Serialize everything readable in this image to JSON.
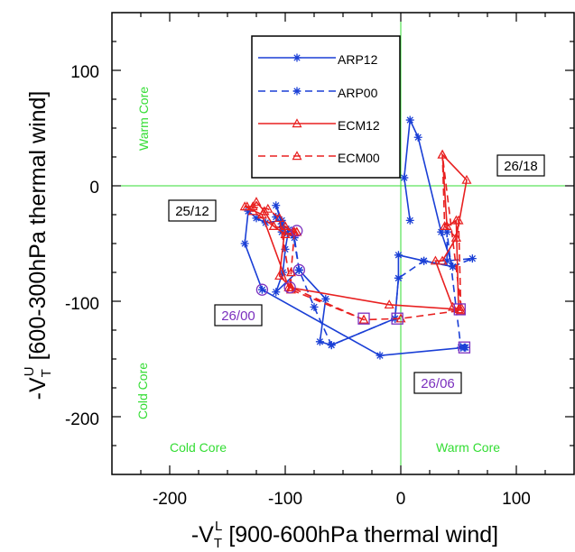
{
  "chart_data": {
    "type": "line",
    "xlabel": {
      "main": "-V",
      "sub": "T",
      "sup": "L",
      "rest": " [900-600hPa thermal wind]"
    },
    "ylabel": {
      "main": "-V",
      "sub": "T",
      "sup": "U",
      "rest": " [600-300hPa thermal wind]"
    },
    "xlim": [
      -250,
      150
    ],
    "ylim": [
      -250,
      150
    ],
    "xticks": [
      -200,
      -100,
      0,
      100
    ],
    "yticks": [
      -200,
      -100,
      0,
      100
    ],
    "xtick_labels": [
      "-200",
      "-100",
      "0",
      "100"
    ],
    "ytick_labels": [
      "-200",
      "-100",
      "0",
      "100"
    ],
    "quadrant_color": "#33dd33",
    "quadrant_labels": {
      "upper_left": "Warm Core",
      "lower_left_vertical": "Cold Core",
      "lower_left": "Cold Core",
      "lower_right": "Warm Core"
    },
    "legend_placement": "top-center",
    "series": [
      {
        "name": "ARP12",
        "color": "#1a3fd6",
        "style": "solid",
        "marker": "asterisk",
        "points": [
          [
            56,
            -140
          ],
          [
            -18,
            -147
          ],
          [
            -120,
            -90
          ],
          [
            -135,
            -50
          ],
          [
            -132,
            -22
          ],
          [
            -125,
            -28
          ],
          [
            -117,
            -32
          ],
          [
            -103,
            -30
          ],
          [
            -108,
            -17
          ],
          [
            -103,
            -33
          ],
          [
            -97,
            -38
          ],
          [
            -100,
            -55
          ],
          [
            -102,
            -75
          ],
          [
            -108,
            -92
          ],
          [
            -88,
            -73
          ],
          [
            -65,
            -98
          ],
          [
            -70,
            -135
          ],
          [
            -60,
            -138
          ],
          [
            -5,
            -115
          ],
          [
            -2,
            -80
          ],
          [
            -2,
            -60
          ],
          [
            20,
            -65
          ],
          [
            45,
            -70
          ],
          [
            35,
            -40
          ],
          [
            15,
            42
          ],
          [
            8,
            57
          ],
          [
            3,
            7
          ],
          [
            8,
            -30
          ]
        ]
      },
      {
        "name": "ARP00",
        "color": "#1a3fd6",
        "style": "dashed",
        "marker": "asterisk",
        "points": [
          [
            -88,
            -73
          ],
          [
            -93,
            -43
          ],
          [
            -103,
            -40
          ],
          [
            -108,
            -27
          ],
          [
            -98,
            -41
          ],
          [
            -92,
            -45
          ],
          [
            -88,
            -73
          ],
          [
            -75,
            -105
          ],
          [
            -60,
            -138
          ],
          [
            -5,
            -115
          ],
          [
            -2,
            -80
          ],
          [
            20,
            -65
          ],
          [
            45,
            -70
          ],
          [
            62,
            -63
          ],
          [
            40,
            -65
          ],
          [
            40,
            -40
          ],
          [
            52,
            -140
          ],
          [
            55,
            -140
          ]
        ]
      },
      {
        "name": "ECM12",
        "color": "#e82020",
        "style": "solid",
        "marker": "triangle",
        "points": [
          [
            -95,
            -88
          ],
          [
            -105,
            -78
          ],
          [
            -100,
            -35
          ],
          [
            -93,
            -40
          ],
          [
            -90,
            -40
          ],
          [
            -100,
            -42
          ],
          [
            -110,
            -35
          ],
          [
            -118,
            -22
          ],
          [
            -125,
            -14
          ],
          [
            -128,
            -18
          ],
          [
            -135,
            -18
          ],
          [
            -120,
            -25
          ],
          [
            -97,
            -88
          ],
          [
            -10,
            -103
          ],
          [
            50,
            -107
          ],
          [
            48,
            -30
          ],
          [
            40,
            -35
          ],
          [
            36,
            27
          ],
          [
            57,
            5
          ],
          [
            48,
            -45
          ],
          [
            36,
            -65
          ],
          [
            30,
            -65
          ],
          [
            45,
            -105
          ],
          [
            52,
            -108
          ]
        ]
      },
      {
        "name": "ECM00",
        "color": "#e82020",
        "style": "dashed",
        "marker": "triangle",
        "points": [
          [
            -32,
            -116
          ],
          [
            -95,
            -90
          ],
          [
            -95,
            -75
          ],
          [
            -92,
            -40
          ],
          [
            -90,
            -40
          ],
          [
            -110,
            -35
          ],
          [
            -128,
            -22
          ],
          [
            -133,
            -18
          ],
          [
            -115,
            -20
          ],
          [
            -105,
            -28
          ],
          [
            -95,
            -88
          ],
          [
            -32,
            -116
          ],
          [
            0,
            -115
          ],
          [
            52,
            -108
          ],
          [
            50,
            -30
          ],
          [
            48,
            -45
          ],
          [
            38,
            -35
          ],
          [
            36,
            27
          ],
          [
            52,
            -105
          ]
        ]
      }
    ],
    "highlighted_points": [
      {
        "label": "26/00",
        "shape": "circle",
        "color": "#7b2fbe",
        "points": [
          [
            -120,
            -90
          ],
          [
            -88,
            -73
          ],
          [
            -96,
            -88
          ],
          [
            -90,
            -39
          ]
        ]
      },
      {
        "label": "26/06",
        "shape": "square",
        "color": "#7b2fbe",
        "points": [
          [
            -32,
            -115
          ],
          [
            -3,
            -115
          ],
          [
            51,
            -107
          ],
          [
            55,
            -140
          ]
        ]
      }
    ],
    "annotations": [
      {
        "text": "25/12",
        "color": "#000000",
        "at": [
          -195,
          -21
        ]
      },
      {
        "text": "26/18",
        "color": "#000000",
        "at": [
          110,
          20
        ]
      },
      {
        "text": "26/00",
        "color": "#7b2fbe",
        "at": [
          -155,
          -112
        ]
      },
      {
        "text": "26/06",
        "color": "#7b2fbe",
        "at": [
          95,
          -170
        ]
      }
    ]
  }
}
